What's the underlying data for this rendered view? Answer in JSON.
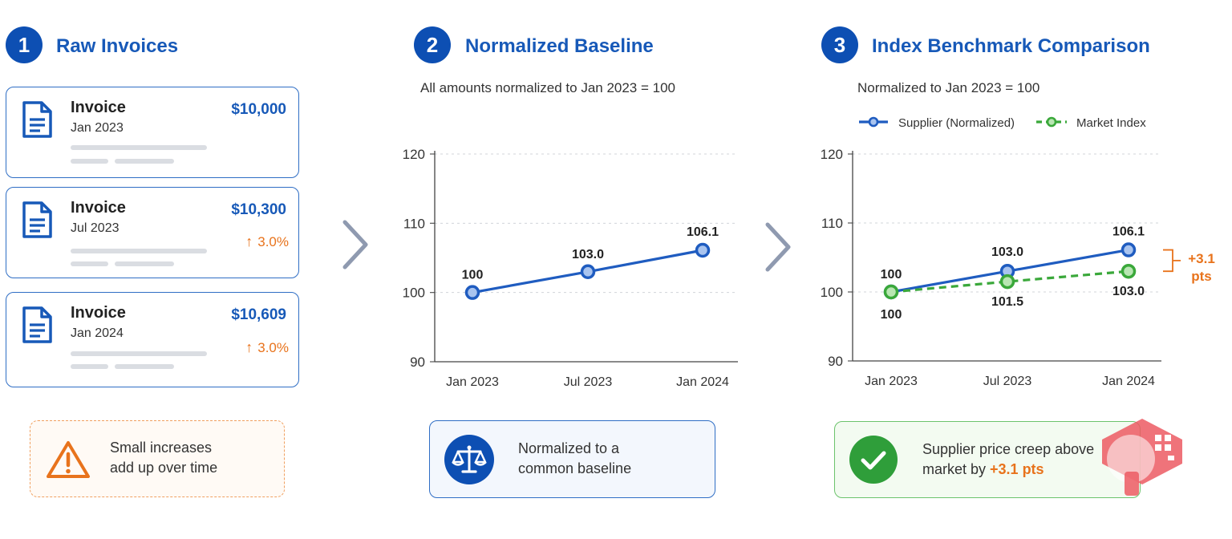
{
  "steps": [
    {
      "number": "1",
      "title": "Raw Invoices"
    },
    {
      "number": "2",
      "title": "Normalized Baseline"
    },
    {
      "number": "3",
      "title": "Index Benchmark Comparison"
    }
  ],
  "invoices": [
    {
      "label": "Invoice",
      "date": "Jan 2023",
      "amount": "$10,000",
      "change": ""
    },
    {
      "label": "Invoice",
      "date": "Jul 2023",
      "amount": "$10,300",
      "change": "3.0%"
    },
    {
      "label": "Invoice",
      "date": "Jan 2024",
      "amount": "$10,609",
      "change": "3.0%"
    }
  ],
  "warning_callout": {
    "line1": "Small increases",
    "line2": "add up over time"
  },
  "baseline_subtitle": "All amounts normalized to Jan 2023 = 100",
  "baseline_callout": {
    "line1": "Normalized to a",
    "line2": "common baseline"
  },
  "benchmark_subtitle": "Normalized to Jan 2023 = 100",
  "benchmark_callout": {
    "line1": "Supplier price creep above",
    "line2_prefix": "market by ",
    "line2_highlight": "+3.1 pts"
  },
  "gap_annotation": {
    "line1": "+3.1",
    "line2": "pts"
  },
  "colors": {
    "primary": "#1759b8",
    "supplier": "#1f5cc0",
    "market": "#3aa83a",
    "accent": "#e8731c",
    "success_border": "#6cc36c"
  },
  "chart_data": [
    {
      "type": "line",
      "x": [
        "Jan 2023",
        "Jul 2023",
        "Jan 2024"
      ],
      "yticks": [
        "90",
        "100",
        "110",
        "120"
      ],
      "ylim": [
        90,
        120
      ],
      "grid": true,
      "series": [
        {
          "values": [
            100,
            103.0,
            106.1
          ],
          "labels": [
            "100",
            "103.0",
            "106.1"
          ]
        }
      ]
    },
    {
      "type": "line",
      "x": [
        "Jan 2023",
        "Jul 2023",
        "Jan 2024"
      ],
      "yticks": [
        "90",
        "100",
        "110",
        "120"
      ],
      "ylim": [
        90,
        120
      ],
      "grid": true,
      "legend": "top",
      "series": [
        {
          "name": "Supplier (Normalized)",
          "values": [
            100,
            103.0,
            106.1
          ],
          "labels": [
            "100",
            "103.0",
            "106.1"
          ]
        },
        {
          "name": "Market Index",
          "values": [
            100,
            101.5,
            103.0
          ],
          "labels": [
            "100",
            "101.5",
            "103.0"
          ]
        }
      ]
    }
  ]
}
